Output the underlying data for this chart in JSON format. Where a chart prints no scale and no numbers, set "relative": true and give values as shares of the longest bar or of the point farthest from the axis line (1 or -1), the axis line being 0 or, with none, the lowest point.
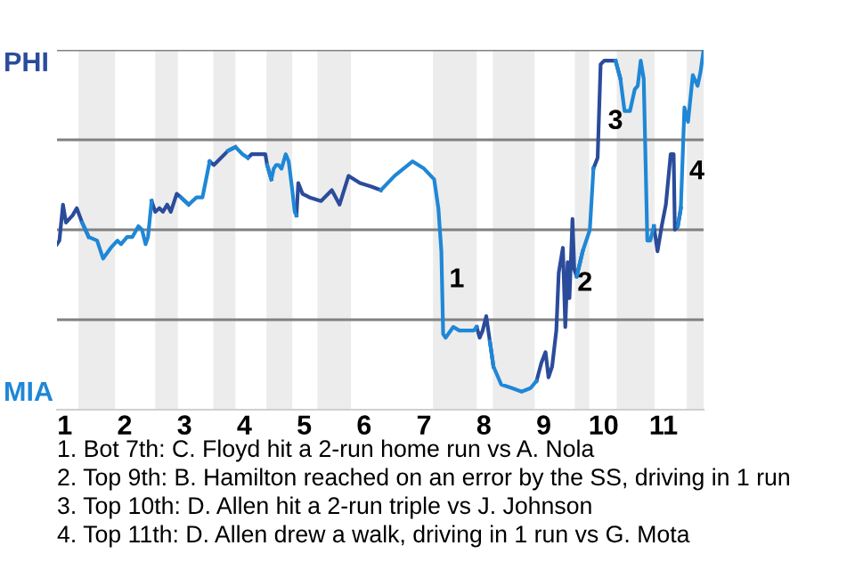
{
  "chart_data": {
    "type": "line",
    "relative": true,
    "grid": false,
    "legend": false,
    "marker": "none",
    "line_style": "solid",
    "xlim": [
      0.87,
      11.67
    ],
    "xticks": [
      1,
      2,
      3,
      4,
      5,
      6,
      7,
      8,
      9,
      10,
      11
    ],
    "bands": [
      {
        "axis": "x",
        "from": 1.23,
        "to": 1.84,
        "color": "#ececec"
      },
      {
        "axis": "x",
        "from": 2.51,
        "to": 2.89,
        "color": "#ececec"
      },
      {
        "axis": "x",
        "from": 3.48,
        "to": 3.85,
        "color": "#ececec"
      },
      {
        "axis": "x",
        "from": 4.37,
        "to": 4.8,
        "color": "#ececec"
      },
      {
        "axis": "x",
        "from": 5.22,
        "to": 5.78,
        "color": "#ececec"
      },
      {
        "axis": "x",
        "from": 7.15,
        "to": 7.88,
        "color": "#ececec"
      },
      {
        "axis": "x",
        "from": 8.15,
        "to": 8.85,
        "color": "#ececec"
      },
      {
        "axis": "x",
        "from": 9.52,
        "to": 9.76,
        "color": "#ececec"
      },
      {
        "axis": "x",
        "from": 10.22,
        "to": 10.85,
        "color": "#ececec"
      },
      {
        "axis": "x",
        "from": 11.39,
        "to": 11.67,
        "color": "#ececec"
      }
    ],
    "ref_lines": [
      {
        "axis": "y",
        "value": 0.25,
        "color": "#808080"
      },
      {
        "axis": "y",
        "value": 0.5,
        "color": "#808080"
      },
      {
        "axis": "y",
        "value": 0.75,
        "color": "#808080"
      },
      {
        "axis": "y",
        "value": 1.0,
        "color": "#808080"
      }
    ],
    "series": [
      {
        "color": "#2b4c9b",
        "x": [
          0.87,
          0.91,
          0.97,
          1.02,
          1.13,
          1.2,
          1.29,
          1.4,
          null,
          2.45,
          2.51,
          2.58,
          2.64,
          2.71,
          2.77,
          2.87,
          2.94,
          3.07,
          null,
          3.42,
          3.49,
          3.73,
          3.85,
          null,
          4.06,
          4.12,
          4.35,
          4.38,
          4.45,
          null,
          4.87,
          4.9,
          4.97,
          5.09,
          5.28,
          5.46,
          5.59,
          5.74,
          5.93,
          6.12,
          6.28,
          null,
          7.88,
          7.93,
          7.98,
          8.04,
          8.1,
          8.16,
          null,
          8.88,
          8.96,
          9.03,
          9.08,
          9.14,
          9.21,
          9.25,
          9.32,
          9.36,
          9.4,
          9.43,
          9.48,
          9.51,
          9.55,
          9.65,
          null,
          9.83,
          9.9,
          9.95,
          10.01,
          10.2,
          10.28,
          null,
          10.84,
          10.9,
          10.97,
          11.04,
          11.12,
          11.17,
          11.19,
          11.24,
          11.29
        ],
        "values": [
          0.46,
          0.47,
          0.57,
          0.52,
          0.54,
          0.56,
          0.52,
          0.48,
          null,
          0.58,
          0.55,
          0.56,
          0.55,
          0.57,
          0.55,
          0.6,
          0.59,
          0.57,
          null,
          0.69,
          0.68,
          0.72,
          0.73,
          null,
          0.7,
          0.71,
          0.71,
          0.68,
          0.64,
          null,
          0.54,
          0.63,
          0.6,
          0.59,
          0.58,
          0.61,
          0.57,
          0.65,
          0.63,
          0.62,
          0.61,
          null,
          0.23,
          0.2,
          0.22,
          0.26,
          0.19,
          0.12,
          null,
          0.08,
          0.13,
          0.16,
          0.09,
          0.12,
          0.22,
          0.38,
          0.45,
          0.23,
          0.41,
          0.31,
          0.53,
          0.39,
          0.37,
          0.44,
          null,
          0.67,
          0.7,
          0.96,
          0.97,
          0.97,
          0.92,
          null,
          0.51,
          0.44,
          0.51,
          0.57,
          0.71,
          0.71,
          0.5,
          0.51,
          0.56
        ]
      },
      {
        "color": "#1f87d6",
        "x": [
          1.29,
          1.4,
          1.54,
          1.64,
          1.77,
          1.88,
          1.94,
          2.04,
          2.13,
          2.23,
          2.29,
          2.35,
          2.39,
          2.45,
          null,
          2.94,
          3.07,
          3.2,
          3.3,
          3.42,
          null,
          3.73,
          3.85,
          3.97,
          4.06,
          null,
          4.38,
          4.45,
          4.49,
          4.53,
          4.57,
          4.62,
          4.69,
          4.74,
          4.8,
          4.84,
          4.87,
          null,
          6.28,
          6.51,
          6.81,
          7.0,
          7.17,
          7.24,
          7.29,
          7.32,
          7.36,
          7.49,
          7.59,
          7.83,
          7.88,
          null,
          8.1,
          8.16,
          8.29,
          8.47,
          8.63,
          8.78,
          8.88,
          null,
          9.55,
          9.65,
          9.77,
          9.83,
          null,
          10.2,
          10.28,
          10.35,
          10.44,
          10.52,
          10.57,
          10.62,
          10.67,
          10.73,
          10.78,
          10.84,
          null,
          11.24,
          11.29,
          11.35,
          11.41,
          11.49,
          11.57,
          11.62,
          11.67
        ],
        "values": [
          0.52,
          0.48,
          0.47,
          0.42,
          0.45,
          0.47,
          0.46,
          0.48,
          0.48,
          0.51,
          0.5,
          0.46,
          0.48,
          0.58,
          null,
          0.59,
          0.57,
          0.59,
          0.59,
          0.69,
          null,
          0.72,
          0.73,
          0.71,
          0.7,
          null,
          0.68,
          0.64,
          0.67,
          0.68,
          0.68,
          0.67,
          0.71,
          0.69,
          0.61,
          0.55,
          0.54,
          null,
          0.61,
          0.65,
          0.69,
          0.67,
          0.64,
          0.56,
          0.44,
          0.21,
          0.2,
          0.23,
          0.22,
          0.22,
          0.23,
          null,
          0.19,
          0.12,
          0.07,
          0.06,
          0.05,
          0.06,
          0.08,
          null,
          0.37,
          0.44,
          0.5,
          0.67,
          null,
          0.97,
          0.92,
          0.83,
          0.83,
          0.89,
          0.9,
          0.97,
          0.92,
          0.47,
          0.47,
          0.51,
          null,
          0.51,
          0.56,
          0.84,
          0.8,
          0.93,
          0.9,
          0.94,
          1.0
        ]
      }
    ],
    "annotations": [
      "PHI",
      "MIA",
      {
        "text": "1",
        "x": 7.3,
        "y": 0.36
      },
      {
        "text": "2",
        "x": 9.44,
        "y": 0.35
      },
      {
        "text": "3",
        "x": 9.95,
        "y": 0.8
      },
      {
        "text": "4",
        "x": 11.31,
        "y": 0.66
      },
      "1. Bot 7th: C. Floyd hit a 2-run home run vs A. Nola",
      "2. Top 9th: B. Hamilton reached on an error by the SS, driving in 1 run",
      "3. Top 10th: D. Allen hit a 2-run triple vs J. Johnson",
      "4. Top 11th: D. Allen drew a walk, driving in 1 run vs G. Mota"
    ]
  }
}
